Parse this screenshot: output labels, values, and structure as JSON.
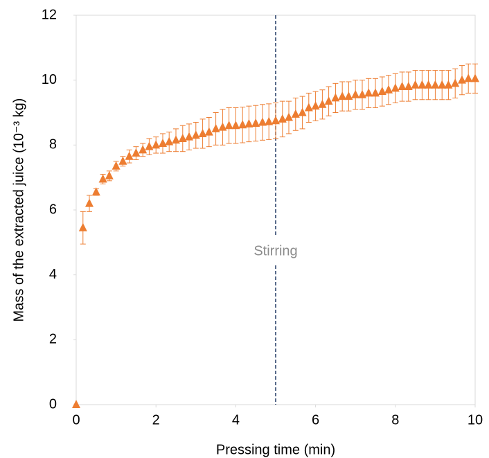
{
  "chart_data": {
    "type": "scatter",
    "xlabel": "Pressing time (min)",
    "ylabel": "Mass of the extracted juice (10⁻³ kg)",
    "xlim": [
      0,
      10
    ],
    "xticks": [
      0,
      2,
      4,
      6,
      8,
      10
    ],
    "ylim": [
      0,
      12
    ],
    "yticks": [
      0,
      2,
      4,
      6,
      8,
      10,
      12
    ],
    "grid": false,
    "vline": {
      "x": 5,
      "label": "Stirring",
      "color": "#203864"
    },
    "series": [
      {
        "color": "#ED7D31",
        "x": [
          0,
          0.17,
          0.33,
          0.5,
          0.67,
          0.83,
          1,
          1.17,
          1.33,
          1.5,
          1.67,
          1.83,
          2,
          2.17,
          2.33,
          2.5,
          2.67,
          2.83,
          3,
          3.17,
          3.33,
          3.5,
          3.67,
          3.83,
          4,
          4.17,
          4.33,
          4.5,
          4.67,
          4.83,
          5,
          5.17,
          5.33,
          5.5,
          5.67,
          5.83,
          6,
          6.17,
          6.33,
          6.5,
          6.67,
          6.83,
          7,
          7.17,
          7.33,
          7.5,
          7.67,
          7.83,
          8,
          8.17,
          8.33,
          8.5,
          8.67,
          8.83,
          9,
          9.17,
          9.33,
          9.5,
          9.67,
          9.83,
          10
        ],
        "values": [
          0,
          5.45,
          6.2,
          6.55,
          6.95,
          7.05,
          7.35,
          7.5,
          7.65,
          7.75,
          7.85,
          7.95,
          8.0,
          8.05,
          8.1,
          8.15,
          8.2,
          8.25,
          8.3,
          8.35,
          8.4,
          8.5,
          8.55,
          8.6,
          8.6,
          8.62,
          8.65,
          8.67,
          8.7,
          8.72,
          8.75,
          8.8,
          8.85,
          8.95,
          9.0,
          9.15,
          9.2,
          9.25,
          9.35,
          9.45,
          9.5,
          9.5,
          9.55,
          9.55,
          9.6,
          9.6,
          9.65,
          9.7,
          9.75,
          9.8,
          9.8,
          9.85,
          9.85,
          9.85,
          9.85,
          9.85,
          9.85,
          9.9,
          10.0,
          10.05,
          10.05
        ],
        "error": [
          0,
          0.5,
          0.25,
          0.1,
          0.15,
          0.15,
          0.15,
          0.15,
          0.2,
          0.2,
          0.2,
          0.25,
          0.25,
          0.3,
          0.3,
          0.35,
          0.4,
          0.4,
          0.4,
          0.45,
          0.45,
          0.5,
          0.55,
          0.55,
          0.55,
          0.55,
          0.55,
          0.55,
          0.55,
          0.55,
          0.55,
          0.55,
          0.5,
          0.5,
          0.5,
          0.45,
          0.45,
          0.45,
          0.45,
          0.45,
          0.45,
          0.45,
          0.45,
          0.45,
          0.45,
          0.45,
          0.45,
          0.45,
          0.45,
          0.45,
          0.45,
          0.45,
          0.45,
          0.45,
          0.45,
          0.45,
          0.45,
          0.45,
          0.45,
          0.45,
          0.45
        ]
      }
    ]
  }
}
